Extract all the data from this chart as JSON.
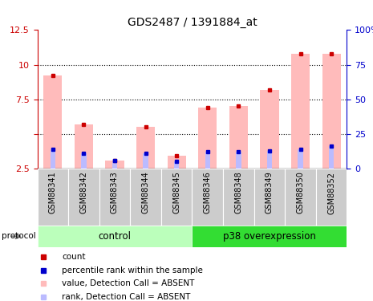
{
  "title": "GDS2487 / 1391884_at",
  "samples": [
    "GSM88341",
    "GSM88342",
    "GSM88343",
    "GSM88344",
    "GSM88345",
    "GSM88346",
    "GSM88348",
    "GSM88349",
    "GSM88350",
    "GSM88352"
  ],
  "values_absent": [
    9.2,
    5.7,
    3.1,
    5.5,
    3.4,
    6.9,
    7.0,
    8.2,
    10.8,
    10.8
  ],
  "rank_absent": [
    3.9,
    3.6,
    3.1,
    3.6,
    3.0,
    3.7,
    3.7,
    3.8,
    3.9,
    4.1
  ],
  "ylim_left": [
    2.5,
    12.5
  ],
  "ylim_right": [
    0,
    100
  ],
  "yticks_left": [
    2.5,
    5.0,
    7.5,
    10.0,
    12.5
  ],
  "ytick_labels_left": [
    "2.5",
    "",
    "7.5",
    "10",
    "12.5"
  ],
  "yticks_right": [
    0,
    25,
    50,
    75,
    100
  ],
  "ytick_labels_right": [
    "0",
    "25",
    "50",
    "75",
    "100%"
  ],
  "groups": [
    {
      "label": "control",
      "indices": [
        0,
        1,
        2,
        3,
        4
      ],
      "color": "#bbffbb"
    },
    {
      "label": "p38 overexpression",
      "indices": [
        5,
        6,
        7,
        8,
        9
      ],
      "color": "#33dd33"
    }
  ],
  "bar_color_absent": "#ffbbbb",
  "rank_bar_color": "#bbbbff",
  "dot_color_red": "#cc0000",
  "dot_color_blue": "#0000cc",
  "axis_color_left": "#cc0000",
  "axis_color_right": "#0000cc",
  "sample_bg_color": "#cccccc",
  "grid_dotted_at": [
    5.0,
    7.5,
    10.0
  ],
  "legend_items": [
    {
      "color": "#cc0000",
      "label": "count"
    },
    {
      "color": "#0000cc",
      "label": "percentile rank within the sample"
    },
    {
      "color": "#ffbbbb",
      "label": "value, Detection Call = ABSENT"
    },
    {
      "color": "#bbbbff",
      "label": "rank, Detection Call = ABSENT"
    }
  ]
}
